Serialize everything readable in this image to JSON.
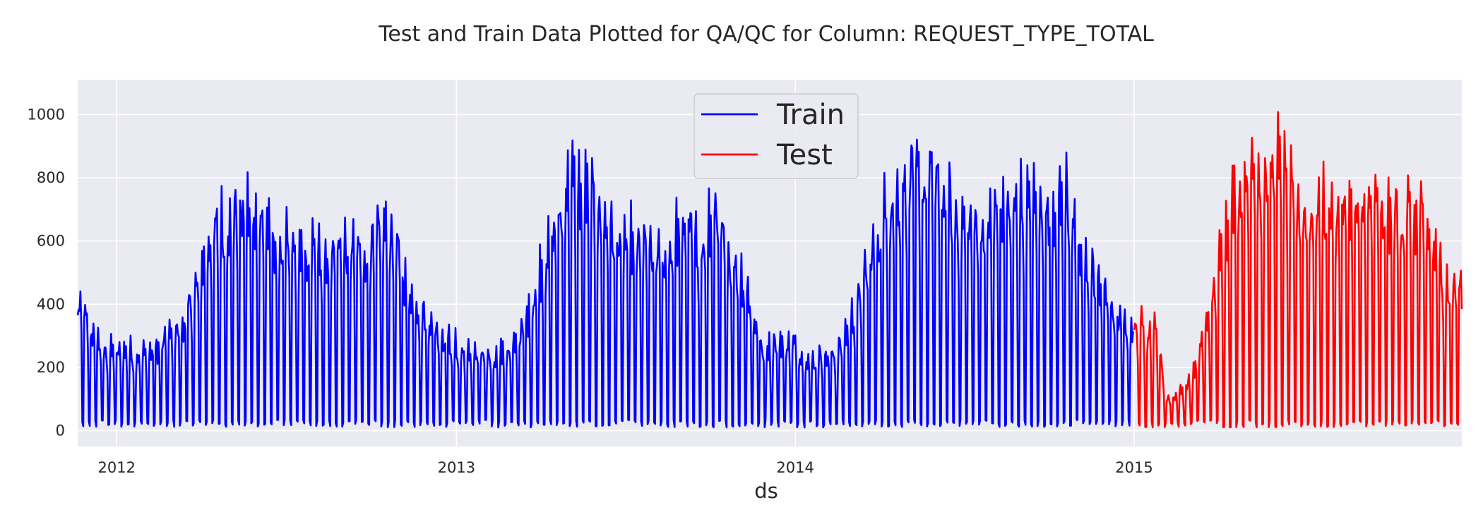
{
  "chart_data": {
    "type": "line",
    "title": "Test and Train Data Plotted for QA/QC for Column: REQUEST_TYPE_TOTAL",
    "xlabel": "ds",
    "ylabel": "",
    "x_range": [
      "2011-11-20",
      "2015-12-20"
    ],
    "ylim": [
      -50,
      1110
    ],
    "x_ticks": [
      "2012",
      "2013",
      "2014",
      "2015"
    ],
    "y_ticks": [
      0,
      200,
      400,
      600,
      800,
      1000
    ],
    "grid": true,
    "legend_placement": "upper-center",
    "colors": {
      "background": "#eaeaf2",
      "grid": "#ffffff",
      "text": "#262626",
      "train": "#0000ff",
      "test": "#ff0000"
    },
    "series": [
      {
        "name": "Train",
        "color": "#0000ff",
        "x_start": "2011-11-20",
        "x_end": "2014-12-31",
        "peak_envelope": [
          [
            "2011-11-20",
            470
          ],
          [
            "2011-12-05",
            380
          ],
          [
            "2011-12-20",
            300
          ],
          [
            "2012-01-10",
            300
          ],
          [
            "2012-02-01",
            290
          ],
          [
            "2012-02-20",
            330
          ],
          [
            "2012-03-10",
            400
          ],
          [
            "2012-03-25",
            520
          ],
          [
            "2012-04-10",
            740
          ],
          [
            "2012-05-01",
            800
          ],
          [
            "2012-05-10",
            855
          ],
          [
            "2012-06-01",
            820
          ],
          [
            "2012-07-01",
            690
          ],
          [
            "2012-08-01",
            680
          ],
          [
            "2012-09-01",
            700
          ],
          [
            "2012-10-01",
            700
          ],
          [
            "2012-10-20",
            775
          ],
          [
            "2012-11-05",
            600
          ],
          [
            "2012-11-25",
            460
          ],
          [
            "2012-12-15",
            380
          ],
          [
            "2013-01-05",
            300
          ],
          [
            "2013-02-01",
            280
          ],
          [
            "2013-03-01",
            300
          ],
          [
            "2013-03-20",
            450
          ],
          [
            "2013-04-05",
            650
          ],
          [
            "2013-04-20",
            800
          ],
          [
            "2013-05-01",
            950
          ],
          [
            "2013-05-20",
            900
          ],
          [
            "2013-06-15",
            770
          ],
          [
            "2013-07-15",
            700
          ],
          [
            "2013-08-15",
            660
          ],
          [
            "2013-09-05",
            830
          ],
          [
            "2013-09-20",
            650
          ],
          [
            "2013-10-05",
            810
          ],
          [
            "2013-10-25",
            650
          ],
          [
            "2013-11-10",
            560
          ],
          [
            "2013-11-25",
            320
          ],
          [
            "2013-12-20",
            350
          ],
          [
            "2014-01-20",
            270
          ],
          [
            "2014-02-15",
            300
          ],
          [
            "2014-03-10",
            480
          ],
          [
            "2014-03-25",
            700
          ],
          [
            "2014-04-15",
            880
          ],
          [
            "2014-05-05",
            980
          ],
          [
            "2014-05-20",
            950
          ],
          [
            "2014-06-10",
            900
          ],
          [
            "2014-07-01",
            800
          ],
          [
            "2014-08-01",
            820
          ],
          [
            "2014-09-01",
            860
          ],
          [
            "2014-10-01",
            830
          ],
          [
            "2014-10-20",
            910
          ],
          [
            "2014-11-05",
            650
          ],
          [
            "2014-11-25",
            580
          ],
          [
            "2014-12-15",
            420
          ],
          [
            "2014-12-31",
            400
          ]
        ],
        "trough_value": 10
      },
      {
        "name": "Test",
        "color": "#ff0000",
        "x_start": "2015-01-01",
        "x_end": "2015-12-20",
        "peak_envelope": [
          [
            "2015-01-01",
            380
          ],
          [
            "2015-01-10",
            390
          ],
          [
            "2015-01-25",
            370
          ],
          [
            "2015-02-05",
            120
          ],
          [
            "2015-02-20",
            150
          ],
          [
            "2015-03-05",
            200
          ],
          [
            "2015-03-15",
            350
          ],
          [
            "2015-03-25",
            500
          ],
          [
            "2015-04-05",
            680
          ],
          [
            "2015-04-20",
            900
          ],
          [
            "2015-05-05",
            1055
          ],
          [
            "2015-05-20",
            980
          ],
          [
            "2015-06-05",
            1000
          ],
          [
            "2015-06-20",
            870
          ],
          [
            "2015-07-10",
            830
          ],
          [
            "2015-08-10",
            830
          ],
          [
            "2015-09-10",
            840
          ],
          [
            "2015-10-10",
            840
          ],
          [
            "2015-11-01",
            820
          ],
          [
            "2015-11-20",
            700
          ],
          [
            "2015-12-05",
            550
          ],
          [
            "2015-12-20",
            550
          ]
        ],
        "trough_value": 10
      }
    ]
  }
}
